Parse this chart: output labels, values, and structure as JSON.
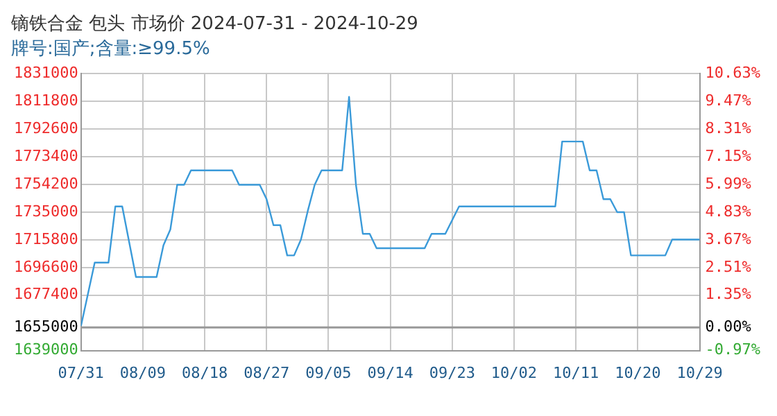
{
  "chart_data": {
    "type": "line",
    "title": "镝铁合金 包头 市场价 2024-07-31 - 2024-10-29",
    "subtitle": "牌号:国产;含量:≥99.5%",
    "series": [
      {
        "color": "#3a9ad9",
        "x": [
          "2024-07-31",
          "2024-08-02",
          "2024-08-04",
          "2024-08-05",
          "2024-08-06",
          "2024-08-08",
          "2024-08-11",
          "2024-08-12",
          "2024-08-13",
          "2024-08-14",
          "2024-08-15",
          "2024-08-16",
          "2024-08-22",
          "2024-08-23",
          "2024-08-26",
          "2024-08-27",
          "2024-08-28",
          "2024-08-29",
          "2024-08-30",
          "2024-08-31",
          "2024-09-01",
          "2024-09-02",
          "2024-09-03",
          "2024-09-04",
          "2024-09-07",
          "2024-09-08",
          "2024-09-09",
          "2024-09-10",
          "2024-09-11",
          "2024-09-12",
          "2024-09-19",
          "2024-09-20",
          "2024-09-22",
          "2024-09-24",
          "2024-10-08",
          "2024-10-09",
          "2024-10-12",
          "2024-10-13",
          "2024-10-14",
          "2024-10-15",
          "2024-10-16",
          "2024-10-17",
          "2024-10-18",
          "2024-10-19",
          "2024-10-24",
          "2024-10-25",
          "2024-10-29"
        ],
        "values": [
          1656000,
          1700000,
          1700000,
          1739000,
          1739000,
          1690000,
          1690000,
          1712000,
          1723000,
          1754000,
          1754000,
          1764000,
          1764000,
          1754000,
          1754000,
          1744000,
          1726000,
          1726000,
          1705000,
          1705000,
          1716000,
          1736000,
          1754000,
          1764000,
          1764000,
          1815000,
          1754000,
          1720000,
          1720000,
          1710000,
          1710000,
          1720000,
          1720000,
          1739000,
          1739000,
          1784000,
          1784000,
          1764000,
          1764000,
          1744000,
          1744000,
          1735000,
          1735000,
          1705000,
          1705000,
          1716000,
          1716000
        ]
      }
    ],
    "xlim": [
      "2024-07-31",
      "2024-10-29"
    ],
    "xticks": [
      {
        "value": "2024-07-31",
        "label": "07/31"
      },
      {
        "value": "2024-08-09",
        "label": "08/09"
      },
      {
        "value": "2024-08-18",
        "label": "08/18"
      },
      {
        "value": "2024-08-27",
        "label": "08/27"
      },
      {
        "value": "2024-09-05",
        "label": "09/05"
      },
      {
        "value": "2024-09-14",
        "label": "09/14"
      },
      {
        "value": "2024-09-23",
        "label": "09/23"
      },
      {
        "value": "2024-10-02",
        "label": "10/02"
      },
      {
        "value": "2024-10-11",
        "label": "10/11"
      },
      {
        "value": "2024-10-20",
        "label": "10/20"
      },
      {
        "value": "2024-10-29",
        "label": "10/29"
      }
    ],
    "ylim": [
      1639000,
      1831000
    ],
    "yticks": [
      1639000,
      1655000,
      1677400,
      1696600,
      1715800,
      1735000,
      1754200,
      1773400,
      1792600,
      1811800,
      1831000
    ],
    "y2lim": [
      -0.97,
      10.63
    ],
    "y2ticks": [
      {
        "value": -0.97,
        "label": "-0.97%"
      },
      {
        "value": 0,
        "label": "0.00%"
      },
      {
        "value": 1.35,
        "label": "1.35%"
      },
      {
        "value": 2.51,
        "label": "2.51%"
      },
      {
        "value": 3.67,
        "label": "3.67%"
      },
      {
        "value": 4.83,
        "label": "4.83%"
      },
      {
        "value": 5.99,
        "label": "5.99%"
      },
      {
        "value": 7.15,
        "label": "7.15%"
      },
      {
        "value": 8.31,
        "label": "8.31%"
      },
      {
        "value": 9.47,
        "label": "9.47%"
      },
      {
        "value": 10.63,
        "label": "10.63%"
      }
    ],
    "ref_lines": [
      {
        "axis": "y",
        "value": 1655000,
        "color": "#999999"
      }
    ],
    "grid": true,
    "marker": "none",
    "line_style": "solid"
  }
}
